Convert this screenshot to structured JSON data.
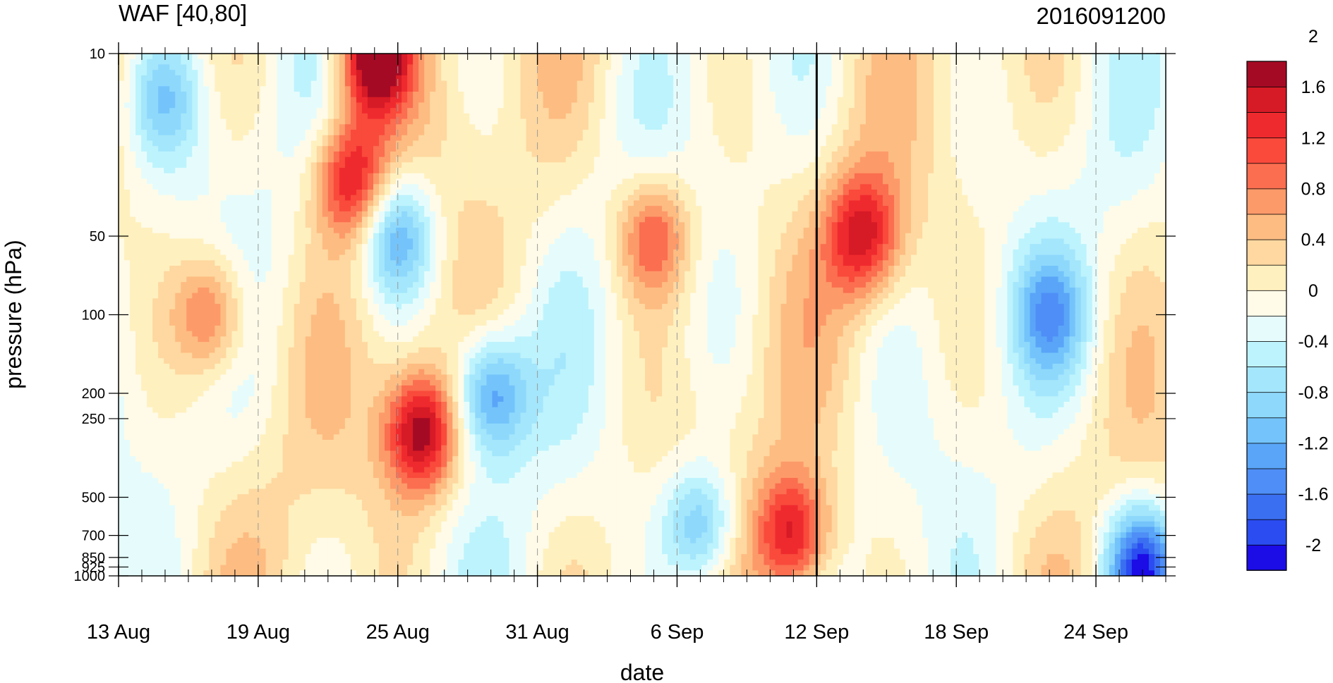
{
  "chart_data": {
    "type": "heatmap",
    "title_left": "WAF [40,80]",
    "title_right": "2016091200",
    "xlabel": "date",
    "ylabel": "pressure (hPa)",
    "y_scale": "log",
    "y_reversed": true,
    "ylim": [
      1000,
      10
    ],
    "y_ticks": [
      10,
      50,
      100,
      200,
      250,
      500,
      700,
      850,
      925,
      1000
    ],
    "x_start": "13 Aug",
    "x_end": "27 Sep",
    "x_ticks": [
      "13 Aug",
      "19 Aug",
      "25 Aug",
      "31 Aug",
      "6 Sep",
      "12 Sep",
      "18 Sep",
      "24 Sep"
    ],
    "vertical_marker": "12 Sep",
    "colorbar": {
      "levels": [
        -2.2,
        -2,
        -1.8,
        -1.6,
        -1.4,
        -1.2,
        -1,
        -0.8,
        -0.6,
        -0.4,
        -0.2,
        0,
        0.2,
        0.4,
        0.6,
        0.8,
        1,
        1.2,
        1.4,
        1.6,
        1.8,
        2,
        2.2
      ],
      "labels": [
        "-2",
        "-1.6",
        "-1.2",
        "-0.8",
        "-0.4",
        "0",
        "0.4",
        "0.8",
        "1.2",
        "1.6",
        "2"
      ],
      "colors": [
        "#1c0ce6",
        "#2a4cf0",
        "#3b6ff2",
        "#4e8ef6",
        "#5aa5f8",
        "#74c4fb",
        "#8ed8fc",
        "#a4e6fb",
        "#bdf3fd",
        "#e6fcfc",
        "#fffbe8",
        "#fff0bf",
        "#fed8a0",
        "#fdbc82",
        "#fd9a6a",
        "#fb6e50",
        "#f94a3c",
        "#ef2a2e",
        "#d61a26",
        "#a50a24"
      ]
    },
    "features": [
      {
        "date": "24 Aug",
        "p": 10,
        "value": 2.2
      },
      {
        "date": "23 Aug",
        "p": 30,
        "value": 1.5
      },
      {
        "date": "25 Aug",
        "p": 50,
        "value": -1.3
      },
      {
        "date": "26 Aug",
        "p": 280,
        "value": 1.8
      },
      {
        "date": "29 Aug",
        "p": 200,
        "value": -1.4
      },
      {
        "date": "14 Sep",
        "p": 50,
        "value": 1.4
      },
      {
        "date": "11 Sep",
        "p": 700,
        "value": 1.5
      },
      {
        "date": "5 Sep",
        "p": 50,
        "value": 1.1
      },
      {
        "date": "17 Aug",
        "p": 100,
        "value": 1.1
      },
      {
        "date": "7 Sep",
        "p": 650,
        "value": -1.2
      },
      {
        "date": "26 Sep",
        "p": 950,
        "value": -2.1
      },
      {
        "date": "22 Sep",
        "p": 100,
        "value": -1.0
      },
      {
        "date": "15 Aug",
        "p": 15,
        "value": -0.8
      }
    ]
  }
}
